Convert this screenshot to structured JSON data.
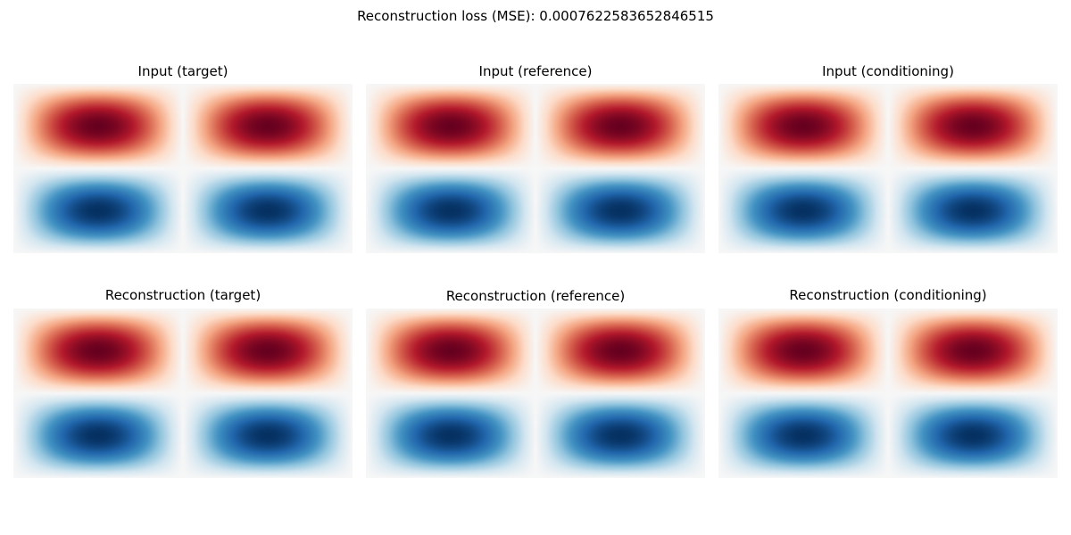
{
  "figure": {
    "suptitle": "Reconstruction loss (MSE): 0.0007622583652846515"
  },
  "chart_data": [
    {
      "type": "heatmap",
      "title": "Input (target)",
      "colormap": "RdBu_r",
      "axes": "off",
      "field": "sin(2πx)·sin(2πy)",
      "x_periods": 2,
      "y_periods": 1,
      "value_range": [
        -1,
        1
      ]
    },
    {
      "type": "heatmap",
      "title": "Input (reference)",
      "colormap": "RdBu_r",
      "axes": "off",
      "field": "sin(2πx)·sin(2πy)",
      "x_periods": 2,
      "y_periods": 1,
      "value_range": [
        -1,
        1
      ]
    },
    {
      "type": "heatmap",
      "title": "Input (conditioning)",
      "colormap": "RdBu_r",
      "axes": "off",
      "field": "sin(2πx)·sin(2πy)",
      "x_periods": 2,
      "y_periods": 1,
      "value_range": [
        -1,
        1
      ]
    },
    {
      "type": "heatmap",
      "title": "Reconstruction (target)",
      "colormap": "RdBu_r",
      "axes": "off",
      "field": "sin(2πx)·sin(2πy)",
      "x_periods": 2,
      "y_periods": 1,
      "value_range": [
        -1,
        1
      ]
    },
    {
      "type": "heatmap",
      "title": "Reconstruction (reference)",
      "colormap": "RdBu_r",
      "axes": "off",
      "field": "sin(2πx)·sin(2πy)",
      "x_periods": 2,
      "y_periods": 1,
      "value_range": [
        -1,
        1
      ]
    },
    {
      "type": "heatmap",
      "title": "Reconstruction (conditioning)",
      "colormap": "RdBu_r",
      "axes": "off",
      "field": "sin(2πx)·sin(2πy)",
      "x_periods": 2,
      "y_periods": 1,
      "value_range": [
        -1,
        1
      ]
    }
  ]
}
